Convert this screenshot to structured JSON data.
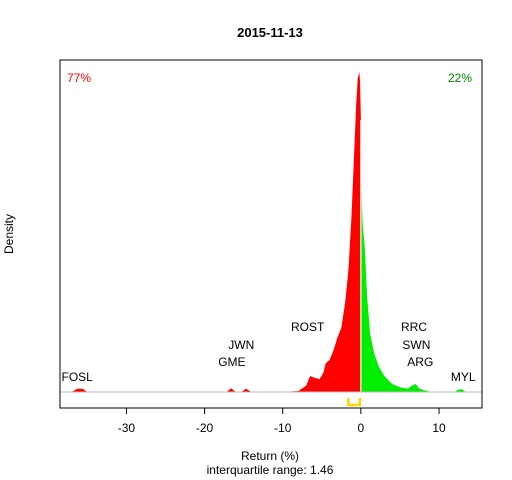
{
  "chart_data": {
    "type": "area",
    "title": "2015-11-13",
    "xlabel": "Return (%)",
    "subtitle": "interquartile range: 1.46",
    "ylabel": "Density",
    "xlim": [
      -38.5,
      15.5
    ],
    "ylim": [
      0,
      1
    ],
    "x_ticks": [
      -30,
      -20,
      -10,
      0,
      10
    ],
    "split_at": 0,
    "left_color": "#ff0000",
    "right_color": "#00ee00",
    "pct_left": "77%",
    "pct_right": "22%",
    "iqr_color": "#ffd700",
    "iqr_range": [
      -1.6,
      -0.14
    ],
    "density_x": [
      -37,
      -36.3,
      -35.6,
      -35,
      -33,
      -20,
      -17.2,
      -16.6,
      -16,
      -15.3,
      -14.7,
      -14,
      -10,
      -8,
      -7,
      -6.5,
      -6,
      -5.3,
      -4.8,
      -4.5,
      -4,
      -3.5,
      -3,
      -2.5,
      -2,
      -1.6,
      -1.2,
      -0.9,
      -0.6,
      -0.4,
      -0.2,
      -0.1,
      0,
      0.1,
      0.25,
      0.5,
      0.8,
      1.2,
      1.7,
      2.3,
      3,
      4,
      5,
      6,
      6.5,
      7,
      7.5,
      8.2,
      9,
      12,
      12.5,
      13,
      13.4,
      14
    ],
    "density_y": [
      0,
      0.01,
      0.01,
      0,
      0,
      0,
      0,
      0.012,
      0,
      0,
      0.01,
      0,
      0,
      0.003,
      0.02,
      0.05,
      0.045,
      0.04,
      0.06,
      0.09,
      0.1,
      0.13,
      0.17,
      0.2,
      0.28,
      0.38,
      0.55,
      0.72,
      0.9,
      0.98,
      1.0,
      0.97,
      0.85,
      0.6,
      0.52,
      0.45,
      0.3,
      0.18,
      0.12,
      0.08,
      0.05,
      0.025,
      0.015,
      0.01,
      0.02,
      0.025,
      0.01,
      0.005,
      0,
      0,
      0.008,
      0.008,
      0,
      0
    ],
    "annotations": [
      {
        "text": "FOSL",
        "x": -36.3
      },
      {
        "text": "GME",
        "x": -16.5
      },
      {
        "text": "JWN",
        "x": -15.3
      },
      {
        "text": "ROST",
        "x": -6.8
      },
      {
        "text": "RRC",
        "x": 6.8
      },
      {
        "text": "SWN",
        "x": 7.1
      },
      {
        "text": "ARG",
        "x": 7.6
      },
      {
        "text": "MYL",
        "x": 13.1
      }
    ]
  }
}
